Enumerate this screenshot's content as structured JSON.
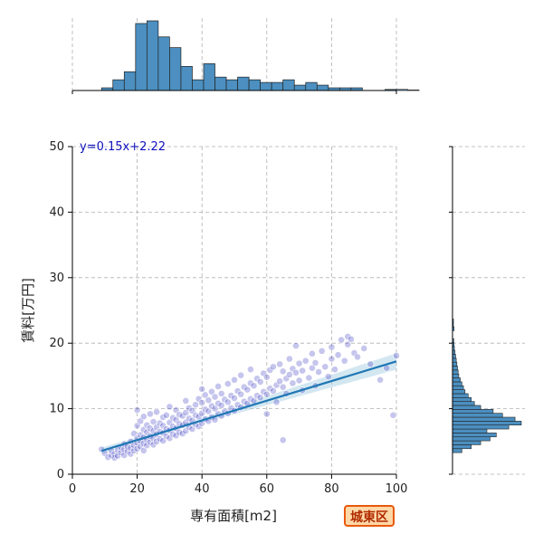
{
  "chart_data": {
    "type": "scatter",
    "xlabel": "専有面積[m2]",
    "ylabel": "賃料[万円]",
    "xlim": [
      0,
      100
    ],
    "ylim": [
      0,
      50
    ],
    "x_ticks": [
      0,
      20,
      40,
      60,
      80,
      100
    ],
    "y_ticks": [
      0,
      10,
      20,
      30,
      40,
      50
    ],
    "grid": true,
    "regression": {
      "slope": 0.15,
      "intercept": 2.22,
      "x_range": [
        9,
        100
      ],
      "label": "y=0.15x+2.22"
    },
    "colors": {
      "points": "#3030c0",
      "line": "#1f77b4",
      "hist": "#4c8fc0",
      "equation": "#1010c0"
    },
    "scatter_note": "Dense cloud of several hundred points; representative sample below.",
    "points": [
      [
        9,
        3.8
      ],
      [
        10,
        3.2
      ],
      [
        11,
        2.6
      ],
      [
        12,
        2.9
      ],
      [
        12,
        3.6
      ],
      [
        13,
        3.1
      ],
      [
        13,
        2.5
      ],
      [
        14,
        2.8
      ],
      [
        14,
        3.7
      ],
      [
        15,
        3.3
      ],
      [
        15,
        4.1
      ],
      [
        16,
        2.9
      ],
      [
        16,
        3.8
      ],
      [
        16,
        4.6
      ],
      [
        17,
        3.5
      ],
      [
        17,
        4.2
      ],
      [
        18,
        3.1
      ],
      [
        18,
        4.0
      ],
      [
        18,
        5.0
      ],
      [
        19,
        3.6
      ],
      [
        19,
        4.4
      ],
      [
        19,
        6.2
      ],
      [
        20,
        3.9
      ],
      [
        20,
        4.8
      ],
      [
        20,
        5.5
      ],
      [
        20,
        7.4
      ],
      [
        20,
        9.8
      ],
      [
        21,
        4.2
      ],
      [
        21,
        5.1
      ],
      [
        21,
        6.0
      ],
      [
        21,
        8.1
      ],
      [
        22,
        3.6
      ],
      [
        22,
        4.7
      ],
      [
        22,
        5.6
      ],
      [
        22,
        6.8
      ],
      [
        22,
        8.8
      ],
      [
        23,
        4.4
      ],
      [
        23,
        5.3
      ],
      [
        23,
        6.4
      ],
      [
        23,
        7.5
      ],
      [
        24,
        4.9
      ],
      [
        24,
        5.8
      ],
      [
        24,
        7.0
      ],
      [
        24,
        9.2
      ],
      [
        25,
        4.5
      ],
      [
        25,
        5.5
      ],
      [
        25,
        6.6
      ],
      [
        25,
        8.0
      ],
      [
        26,
        5.0
      ],
      [
        26,
        6.1
      ],
      [
        26,
        7.2
      ],
      [
        26,
        9.5
      ],
      [
        27,
        5.4
      ],
      [
        27,
        6.5
      ],
      [
        27,
        7.8
      ],
      [
        28,
        5.1
      ],
      [
        28,
        6.3
      ],
      [
        28,
        7.4
      ],
      [
        28,
        8.7
      ],
      [
        29,
        5.8
      ],
      [
        29,
        6.9
      ],
      [
        29,
        9.0
      ],
      [
        30,
        5.5
      ],
      [
        30,
        6.7
      ],
      [
        30,
        7.9
      ],
      [
        30,
        10.3
      ],
      [
        31,
        6.1
      ],
      [
        31,
        7.3
      ],
      [
        31,
        8.6
      ],
      [
        32,
        5.9
      ],
      [
        32,
        7.0
      ],
      [
        32,
        8.3
      ],
      [
        32,
        9.8
      ],
      [
        33,
        6.4
      ],
      [
        33,
        7.7
      ],
      [
        33,
        9.1
      ],
      [
        34,
        6.2
      ],
      [
        34,
        7.5
      ],
      [
        34,
        8.9
      ],
      [
        35,
        6.6
      ],
      [
        35,
        7.9
      ],
      [
        35,
        9.4
      ],
      [
        35,
        11.2
      ],
      [
        36,
        7.2
      ],
      [
        36,
        8.5
      ],
      [
        36,
        10.1
      ],
      [
        37,
        6.9
      ],
      [
        37,
        8.2
      ],
      [
        37,
        9.7
      ],
      [
        38,
        7.6
      ],
      [
        38,
        9.0
      ],
      [
        38,
        10.6
      ],
      [
        39,
        7.3
      ],
      [
        39,
        8.8
      ],
      [
        39,
        11.5
      ],
      [
        40,
        7.8
      ],
      [
        40,
        9.3
      ],
      [
        40,
        10.9
      ],
      [
        40,
        13.0
      ],
      [
        41,
        8.4
      ],
      [
        41,
        9.9
      ],
      [
        41,
        12.1
      ],
      [
        42,
        8.1
      ],
      [
        42,
        9.6
      ],
      [
        42,
        11.3
      ],
      [
        43,
        8.7
      ],
      [
        43,
        10.4
      ],
      [
        43,
        12.6
      ],
      [
        44,
        8.3
      ],
      [
        44,
        10.0
      ],
      [
        44,
        11.8
      ],
      [
        45,
        9.2
      ],
      [
        45,
        10.8
      ],
      [
        45,
        13.4
      ],
      [
        46,
        8.9
      ],
      [
        46,
        10.5
      ],
      [
        46,
        12.3
      ],
      [
        47,
        9.6
      ],
      [
        47,
        11.4
      ],
      [
        48,
        9.3
      ],
      [
        48,
        11.0
      ],
      [
        48,
        13.8
      ],
      [
        49,
        10.1
      ],
      [
        49,
        12.0
      ],
      [
        50,
        9.7
      ],
      [
        50,
        11.6
      ],
      [
        50,
        14.4
      ],
      [
        51,
        10.6
      ],
      [
        51,
        12.7
      ],
      [
        52,
        10.2
      ],
      [
        52,
        12.2
      ],
      [
        52,
        15.1
      ],
      [
        53,
        11.1
      ],
      [
        53,
        13.3
      ],
      [
        54,
        10.8
      ],
      [
        54,
        12.9
      ],
      [
        55,
        11.5
      ],
      [
        55,
        13.9
      ],
      [
        55,
        16.0
      ],
      [
        56,
        11.2
      ],
      [
        56,
        13.5
      ],
      [
        57,
        12.0
      ],
      [
        57,
        14.6
      ],
      [
        58,
        11.7
      ],
      [
        58,
        14.1
      ],
      [
        59,
        12.6
      ],
      [
        59,
        15.4
      ],
      [
        60,
        12.2
      ],
      [
        60,
        14.8
      ],
      [
        60,
        9.2
      ],
      [
        61,
        13.1
      ],
      [
        61,
        15.9
      ],
      [
        62,
        12.7
      ],
      [
        62,
        16.4
      ],
      [
        63,
        13.6
      ],
      [
        63,
        11.0
      ],
      [
        64,
        14.2
      ],
      [
        64,
        16.8
      ],
      [
        65,
        13.3
      ],
      [
        65,
        15.7
      ],
      [
        65,
        5.2
      ],
      [
        66,
        14.6
      ],
      [
        66,
        12.3
      ],
      [
        67,
        15.2
      ],
      [
        67,
        17.6
      ],
      [
        68,
        13.9
      ],
      [
        68,
        16.1
      ],
      [
        69,
        15.5
      ],
      [
        69,
        19.6
      ],
      [
        70,
        14.3
      ],
      [
        70,
        16.9
      ],
      [
        71,
        12.8
      ],
      [
        71,
        15.8
      ],
      [
        72,
        17.3
      ],
      [
        73,
        14.7
      ],
      [
        74,
        16.2
      ],
      [
        74,
        18.4
      ],
      [
        75,
        13.5
      ],
      [
        75,
        17.0
      ],
      [
        76,
        15.6
      ],
      [
        77,
        18.8
      ],
      [
        78,
        16.4
      ],
      [
        79,
        14.9
      ],
      [
        80,
        17.6
      ],
      [
        80,
        19.4
      ],
      [
        81,
        16.0
      ],
      [
        82,
        18.2
      ],
      [
        83,
        20.5
      ],
      [
        84,
        17.3
      ],
      [
        85,
        19.8
      ],
      [
        85,
        21.0
      ],
      [
        86,
        20.6
      ],
      [
        87,
        18.5
      ],
      [
        88,
        17.9
      ],
      [
        90,
        19.2
      ],
      [
        92,
        16.8
      ],
      [
        95,
        14.4
      ],
      [
        97,
        16.2
      ],
      [
        99,
        9.0
      ],
      [
        100,
        18.1
      ]
    ]
  }
}
